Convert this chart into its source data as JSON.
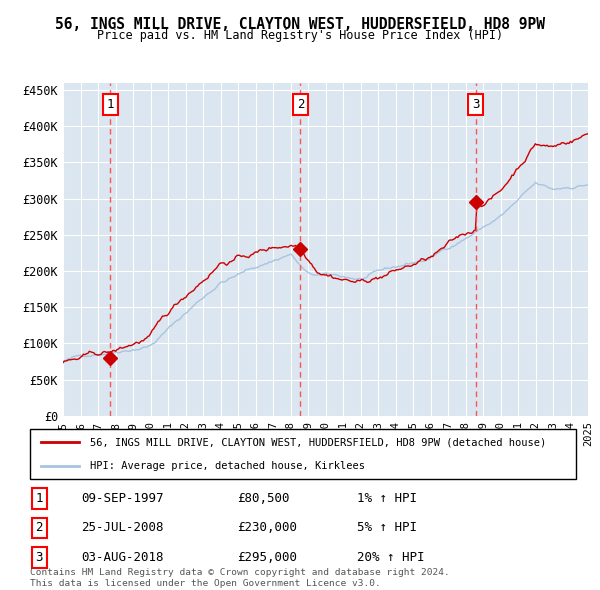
{
  "title_line1": "56, INGS MILL DRIVE, CLAYTON WEST, HUDDERSFIELD, HD8 9PW",
  "title_line2": "Price paid vs. HM Land Registry's House Price Index (HPI)",
  "bg_color": "#dce6f0",
  "hpi_color": "#a8c4e0",
  "price_color": "#cc0000",
  "marker_color": "#cc0000",
  "vline_color": "#ff4444",
  "sale_dates": [
    1997.69,
    2008.57,
    2018.59
  ],
  "sale_prices": [
    80500,
    230000,
    295000
  ],
  "sale_labels": [
    "1",
    "2",
    "3"
  ],
  "sale_info": [
    {
      "num": "1",
      "date": "09-SEP-1997",
      "price": "£80,500",
      "pct": "1% ↑ HPI"
    },
    {
      "num": "2",
      "date": "25-JUL-2008",
      "price": "£230,000",
      "pct": "5% ↑ HPI"
    },
    {
      "num": "3",
      "date": "03-AUG-2018",
      "price": "£295,000",
      "pct": "20% ↑ HPI"
    }
  ],
  "legend_line1": "56, INGS MILL DRIVE, CLAYTON WEST, HUDDERSFIELD, HD8 9PW (detached house)",
  "legend_line2": "HPI: Average price, detached house, Kirklees",
  "footer_line1": "Contains HM Land Registry data © Crown copyright and database right 2024.",
  "footer_line2": "This data is licensed under the Open Government Licence v3.0.",
  "xmin": 1995,
  "xmax": 2025,
  "ymin": 0,
  "ymax": 460000,
  "yticks": [
    0,
    50000,
    100000,
    150000,
    200000,
    250000,
    300000,
    350000,
    400000,
    450000
  ],
  "ytick_labels": [
    "£0",
    "£50K",
    "£100K",
    "£150K",
    "£200K",
    "£250K",
    "£300K",
    "£350K",
    "£400K",
    "£450K"
  ],
  "xtick_years": [
    1995,
    1996,
    1997,
    1998,
    1999,
    2000,
    2001,
    2002,
    2003,
    2004,
    2005,
    2006,
    2007,
    2008,
    2009,
    2010,
    2011,
    2012,
    2013,
    2014,
    2015,
    2016,
    2017,
    2018,
    2019,
    2020,
    2021,
    2022,
    2023,
    2024,
    2025
  ]
}
